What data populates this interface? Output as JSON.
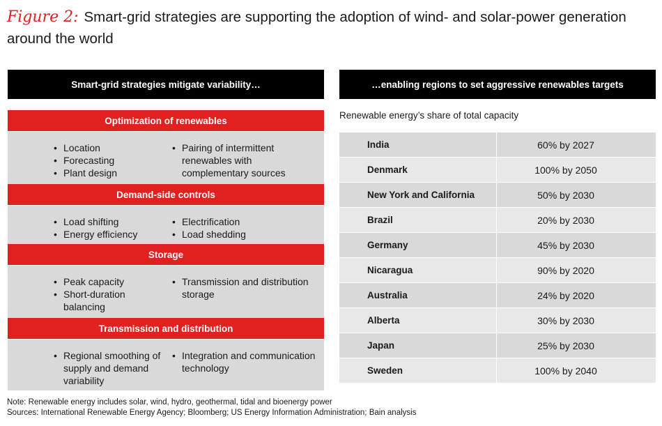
{
  "figure": {
    "label": "Figure 2:",
    "title": "Smart-grid strategies are supporting the adoption of wind- and solar-power generation around the world"
  },
  "left_panel": {
    "header": "Smart-grid strategies mitigate variability…",
    "sections": [
      {
        "title": "Optimization of renewables",
        "col1": [
          "Location",
          "Forecasting",
          "Plant design"
        ],
        "col2": [
          "Pairing of intermittent renewables with complementary sources"
        ]
      },
      {
        "title": "Demand-side controls",
        "col1": [
          "Load shifting",
          "Energy efficiency"
        ],
        "col2": [
          "Electrification",
          "Load shedding"
        ]
      },
      {
        "title": "Storage",
        "col1": [
          "Peak capacity",
          "Short-duration balancing"
        ],
        "col2": [
          "Transmission and distribution storage"
        ]
      },
      {
        "title": "Transmission and distribution",
        "col1": [
          "Regional smoothing of supply and demand variability"
        ],
        "col2": [
          "Integration and communication technology"
        ]
      }
    ]
  },
  "right_panel": {
    "header": "…enabling regions to set aggressive renewables targets",
    "subtitle": "Renewable energy’s share of total capacity"
  },
  "chart_data": {
    "type": "table",
    "title": "Renewable energy’s share of total capacity",
    "rows": [
      {
        "region": "India",
        "target": "60% by 2027",
        "share_pct": 60,
        "year": 2027
      },
      {
        "region": "Denmark",
        "target": "100% by 2050",
        "share_pct": 100,
        "year": 2050
      },
      {
        "region": "New York and California",
        "target": "50% by 2030",
        "share_pct": 50,
        "year": 2030
      },
      {
        "region": "Brazil",
        "target": "20% by 2030",
        "share_pct": 20,
        "year": 2030
      },
      {
        "region": "Germany",
        "target": "45% by 2030",
        "share_pct": 45,
        "year": 2030
      },
      {
        "region": "Nicaragua",
        "target": "90% by 2020",
        "share_pct": 90,
        "year": 2020
      },
      {
        "region": "Australia",
        "target": "24% by 2020",
        "share_pct": 24,
        "year": 2020
      },
      {
        "region": "Alberta",
        "target": "30% by 2030",
        "share_pct": 30,
        "year": 2030
      },
      {
        "region": "Japan",
        "target": "25% by 2030",
        "share_pct": 25,
        "year": 2030
      },
      {
        "region": "Sweden",
        "target": "100% by 2040",
        "share_pct": 100,
        "year": 2040
      }
    ]
  },
  "notes": {
    "note": "Note: Renewable energy includes solar, wind, hydro, geothermal, tidal and bioenergy power",
    "sources": "Sources: International Renewable Energy Agency; Bloomberg; US Energy Information Administration; Bain analysis"
  },
  "colors": {
    "accent_red": "#e2201f",
    "header_black": "#000000",
    "panel_gray": "#d9d9d9",
    "row_light": "#e8e8e8"
  }
}
